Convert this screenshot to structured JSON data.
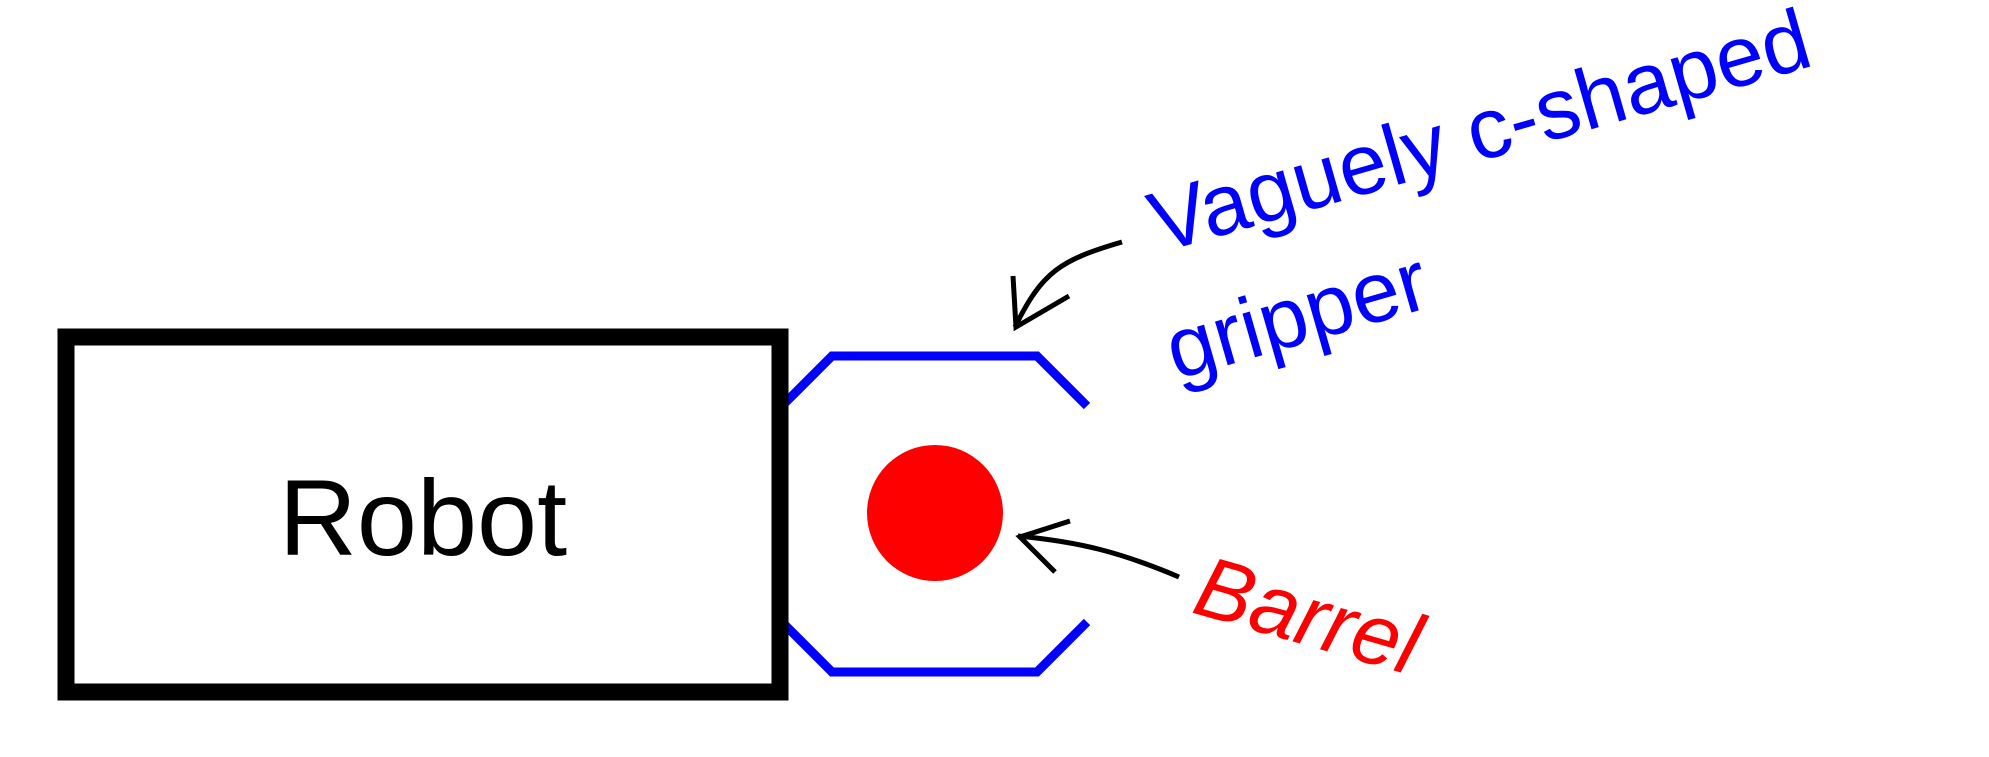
{
  "labels": {
    "robot": "Robot",
    "gripper_line1": "Vaguely c-shaped",
    "gripper_line2": "gripper",
    "barrel": "Barrel"
  },
  "colors": {
    "robot": "#000000",
    "gripper": "#0000ff",
    "barrel": "#ff0000",
    "arrow": "#000000"
  }
}
